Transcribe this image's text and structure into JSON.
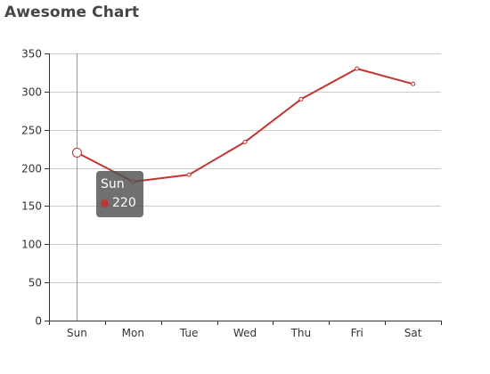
{
  "title": "Awesome Chart",
  "colors": {
    "series": "#c23531",
    "axis": "#333333",
    "grid": "#cccccc",
    "tooltip_bg": "#505050"
  },
  "chart_data": {
    "type": "line",
    "categories": [
      "Sun",
      "Mon",
      "Tue",
      "Wed",
      "Thu",
      "Fri",
      "Sat"
    ],
    "series": [
      {
        "name": "",
        "values": [
          220,
          182,
          191,
          234,
          290,
          330,
          310
        ]
      }
    ],
    "ylim": [
      0,
      350
    ],
    "yticks": [
      0,
      50,
      100,
      150,
      200,
      250,
      300,
      350
    ],
    "grid": true,
    "xlabel": "",
    "ylabel": ""
  },
  "tooltip": {
    "category": "Sun",
    "value": "220"
  }
}
